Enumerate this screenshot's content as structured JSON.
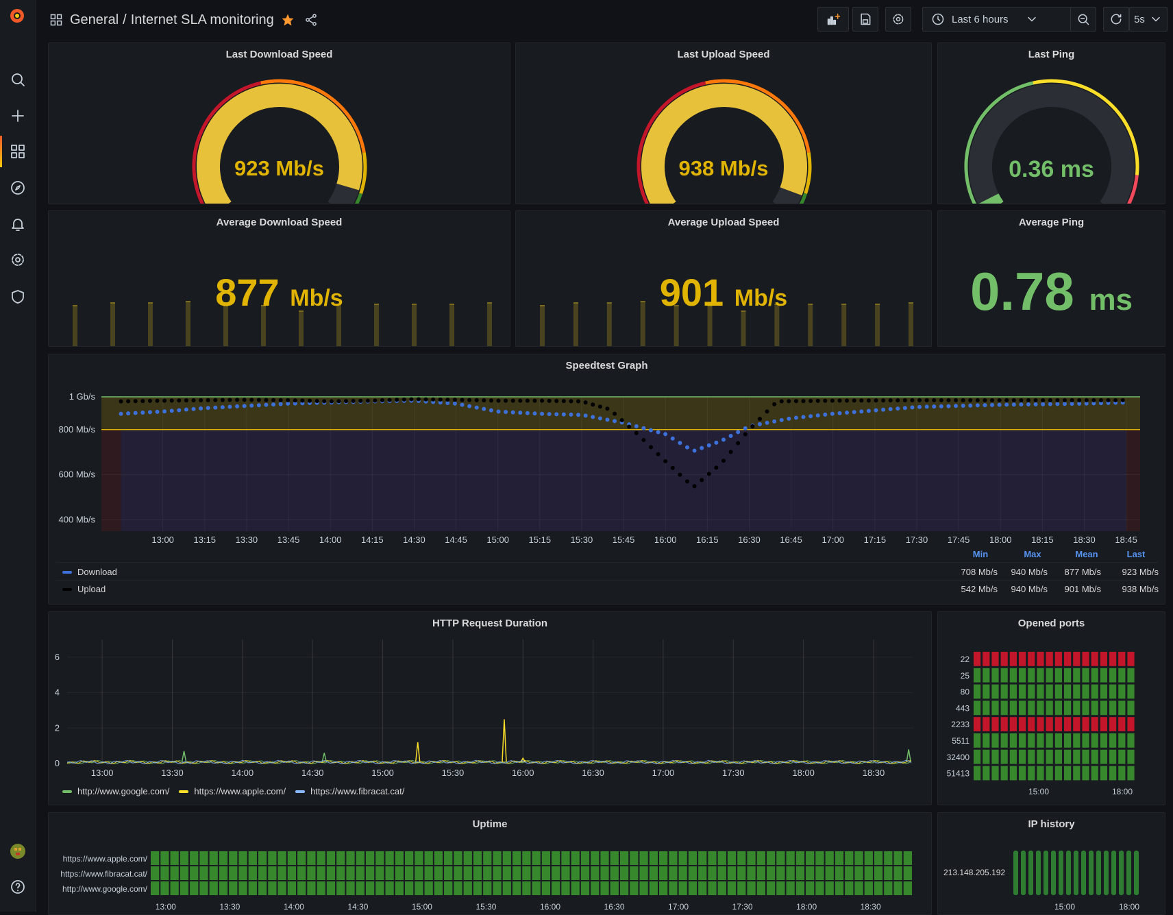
{
  "topbar": {
    "folder": "General",
    "title": "Internet SLA monitoring",
    "time_range": "Last 6 hours",
    "refresh_interval": "5s"
  },
  "sidebar": {
    "items": [
      "search-icon",
      "plus-icon",
      "dashboards-icon",
      "explore-icon",
      "alerting-icon",
      "configuration-icon",
      "shield-icon"
    ]
  },
  "panels": {
    "last_download": {
      "title": "Last Download Speed",
      "value": "923",
      "unit": "Mb/s",
      "fraction": 0.923
    },
    "last_upload": {
      "title": "Last Upload Speed",
      "value": "938",
      "unit": "Mb/s",
      "fraction": 0.938
    },
    "last_ping": {
      "title": "Last Ping",
      "value": "0.36",
      "unit": "ms",
      "fraction": 0.036
    },
    "avg_download": {
      "title": "Average Download Speed",
      "value": "877",
      "unit": "Mb/s"
    },
    "avg_upload": {
      "title": "Average Upload Speed",
      "value": "901",
      "unit": "Mb/s"
    },
    "avg_ping": {
      "title": "Average Ping",
      "value": "0.78",
      "unit": "ms"
    },
    "speedtest": {
      "title": "Speedtest Graph",
      "stat_headers": [
        "Min",
        "Max",
        "Mean",
        "Last"
      ],
      "series": [
        {
          "name": "Download",
          "color": "#3d71d9",
          "min": "708 Mb/s",
          "max": "940 Mb/s",
          "mean": "877 Mb/s",
          "last": "923 Mb/s"
        },
        {
          "name": "Upload",
          "color": "#000000",
          "min": "542 Mb/s",
          "max": "940 Mb/s",
          "mean": "901 Mb/s",
          "last": "938 Mb/s"
        }
      ]
    },
    "http_duration": {
      "title": "HTTP Request Duration"
    },
    "opened_ports": {
      "title": "Opened ports"
    },
    "uptime": {
      "title": "Uptime"
    },
    "ip_history": {
      "title": "IP history",
      "ip": "213.148.205.192",
      "x_ticks": [
        "15:00",
        "18:00"
      ]
    }
  },
  "chart_data": [
    {
      "type": "line",
      "title": "Speedtest Graph",
      "y_ticks": [
        "1 Gb/s",
        "800 Mb/s",
        "600 Mb/s",
        "400 Mb/s"
      ],
      "ylim": [
        350,
        1000
      ],
      "x_ticks": [
        "13:00",
        "13:15",
        "13:30",
        "13:45",
        "14:00",
        "14:15",
        "14:30",
        "14:45",
        "15:00",
        "15:15",
        "15:30",
        "15:45",
        "16:00",
        "16:15",
        "16:30",
        "16:45",
        "17:00",
        "17:15",
        "17:30",
        "17:45",
        "18:00",
        "18:15",
        "18:30",
        "18:45"
      ],
      "thresholds": [
        800
      ],
      "series": [
        {
          "name": "Download",
          "color": "#3d71d9",
          "x": [
            "12:45",
            "13:00",
            "13:15",
            "13:30",
            "13:45",
            "14:00",
            "14:15",
            "14:30",
            "14:45",
            "15:00",
            "15:15",
            "15:30",
            "15:45",
            "16:00",
            "16:10",
            "16:20",
            "16:30",
            "16:45",
            "17:00",
            "17:30",
            "18:00",
            "18:30",
            "18:45"
          ],
          "values": [
            870,
            880,
            895,
            905,
            915,
            920,
            925,
            928,
            915,
            880,
            870,
            865,
            830,
            780,
            705,
            750,
            815,
            850,
            870,
            900,
            910,
            915,
            920
          ]
        },
        {
          "name": "Upload",
          "color": "#000000",
          "x": [
            "12:45",
            "13:00",
            "13:15",
            "13:30",
            "13:45",
            "14:00",
            "14:15",
            "14:30",
            "14:45",
            "15:00",
            "15:15",
            "15:30",
            "15:40",
            "15:50",
            "16:00",
            "16:10",
            "16:20",
            "16:30",
            "16:40",
            "17:00",
            "17:30",
            "18:00",
            "18:30",
            "18:45"
          ],
          "values": [
            925,
            928,
            930,
            932,
            930,
            925,
            928,
            935,
            932,
            928,
            928,
            925,
            890,
            780,
            660,
            545,
            650,
            800,
            925,
            928,
            930,
            930,
            930,
            930
          ]
        }
      ]
    },
    {
      "type": "line",
      "title": "HTTP Request Duration",
      "y_ticks": [
        "6",
        "4",
        "2",
        "0"
      ],
      "ylim": [
        0,
        7
      ],
      "x_ticks": [
        "13:00",
        "13:30",
        "14:00",
        "14:30",
        "15:00",
        "15:30",
        "16:00",
        "16:30",
        "17:00",
        "17:30",
        "18:00",
        "18:30"
      ],
      "series": [
        {
          "name": "http://www.google.com/",
          "color": "#73bf69",
          "spikes": [
            [
              "13:35",
              0.7
            ],
            [
              "14:35",
              0.6
            ],
            [
              "18:45",
              0.8
            ]
          ]
        },
        {
          "name": "https://www.apple.com/",
          "color": "#fade2a",
          "spikes": [
            [
              "15:15",
              1.2
            ],
            [
              "15:52",
              2.5
            ],
            [
              "16:00",
              0.3
            ]
          ]
        },
        {
          "name": "https://www.fibracat.cat/",
          "color": "#8ab8ff",
          "spikes": []
        }
      ]
    },
    {
      "type": "heatmap",
      "title": "Opened ports",
      "categories": [
        "22",
        "25",
        "80",
        "443",
        "2233",
        "5511",
        "32400",
        "51413"
      ],
      "states": [
        "closed",
        "open",
        "open",
        "open",
        "closed",
        "open",
        "open",
        "open"
      ],
      "x_ticks": [
        "15:00",
        "18:00"
      ],
      "colors": {
        "open": "#37872d",
        "closed": "#c4162a"
      }
    },
    {
      "type": "heatmap",
      "title": "Uptime",
      "categories": [
        "https://www.apple.com/",
        "https://www.fibracat.cat/",
        "http://www.google.com/"
      ],
      "states": [
        "up",
        "up",
        "up"
      ],
      "x_ticks": [
        "13:00",
        "13:30",
        "14:00",
        "14:30",
        "15:00",
        "15:30",
        "16:00",
        "16:30",
        "17:00",
        "17:30",
        "18:00",
        "18:30"
      ],
      "colors": {
        "up": "#37872d"
      }
    }
  ]
}
